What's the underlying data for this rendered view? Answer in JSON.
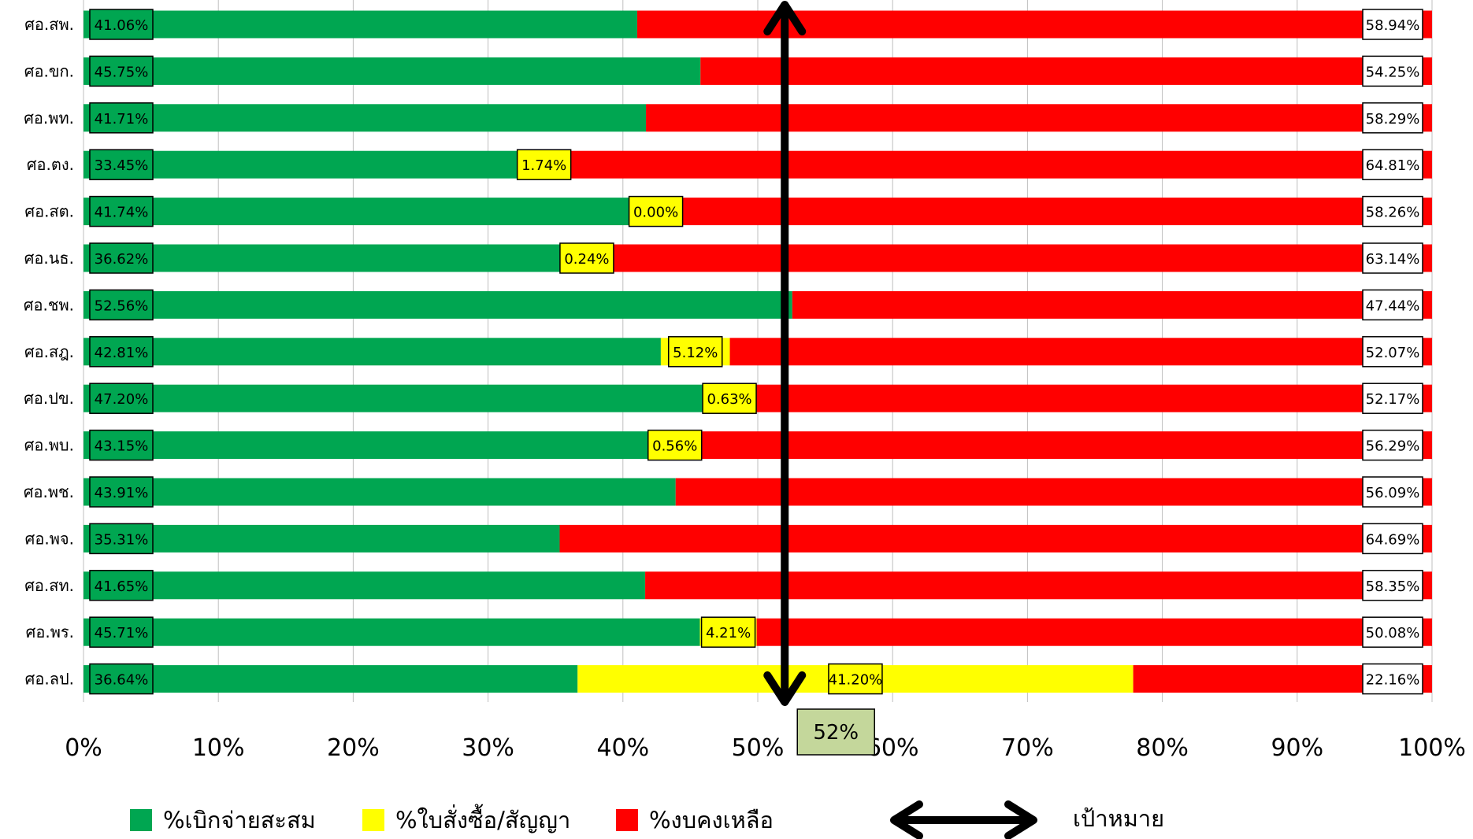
{
  "chart_data": {
    "type": "bar",
    "orientation": "horizontal",
    "stacked": true,
    "percent_axis": true,
    "xlim": [
      0,
      100
    ],
    "x_ticks": [
      "0%",
      "10%",
      "20%",
      "30%",
      "40%",
      "50%",
      "60%",
      "70%",
      "80%",
      "90%",
      "100%"
    ],
    "grid": "vertical",
    "legend_position": "bottom",
    "categories": [
      "ศอ.สพ.",
      "ศอ.ขก.",
      "ศอ.พท.",
      "ศอ.ตง.",
      "ศอ.สต.",
      "ศอ.นธ.",
      "ศอ.ชพ.",
      "ศอ.สฎ.",
      "ศอ.ปข.",
      "ศอ.พบ.",
      "ศอ.พช.",
      "ศอ.พจ.",
      "ศอ.สท.",
      "ศอ.พร.",
      "ศอ.ลป."
    ],
    "series": [
      {
        "name": "%เบิกจ่ายสะสม",
        "color": "#00a651",
        "values": [
          41.06,
          45.75,
          41.71,
          33.45,
          41.74,
          36.62,
          52.56,
          42.81,
          47.2,
          43.15,
          43.91,
          35.31,
          41.65,
          45.71,
          36.64
        ],
        "labels": [
          "41.06%",
          "45.75%",
          "41.71%",
          "33.45%",
          "41.74%",
          "36.62%",
          "52.56%",
          "42.81%",
          "47.20%",
          "43.15%",
          "43.91%",
          "35.31%",
          "41.65%",
          "45.71%",
          "36.64%"
        ]
      },
      {
        "name": "%ใบสั่งซื้อ/สัญญา",
        "color": "#ffff00",
        "values": [
          0,
          0,
          0,
          1.74,
          0.0,
          0.24,
          0,
          5.12,
          0.63,
          0.56,
          0,
          0,
          0,
          4.21,
          41.2
        ],
        "labels": [
          "",
          "",
          "",
          "1.74%",
          "0.00%",
          "0.24%",
          "",
          "5.12%",
          "0.63%",
          "0.56%",
          "",
          "",
          "",
          "4.21%",
          "41.20%"
        ]
      },
      {
        "name": "%งบคงเหลือ",
        "color": "#ff0000",
        "values": [
          58.94,
          54.25,
          58.29,
          64.81,
          58.26,
          63.14,
          47.44,
          52.07,
          52.17,
          56.29,
          56.09,
          64.69,
          58.35,
          50.08,
          22.16
        ],
        "labels": [
          "58.94%",
          "54.25%",
          "58.29%",
          "64.81%",
          "58.26%",
          "63.14%",
          "47.44%",
          "52.07%",
          "52.17%",
          "56.29%",
          "56.09%",
          "64.69%",
          "58.35%",
          "50.08%",
          "22.16%"
        ]
      }
    ],
    "target": {
      "value": 52,
      "label": "52%",
      "legend_label": "เป้าหมาย",
      "color": "#000000",
      "label_fill": "#c4d79b"
    }
  }
}
